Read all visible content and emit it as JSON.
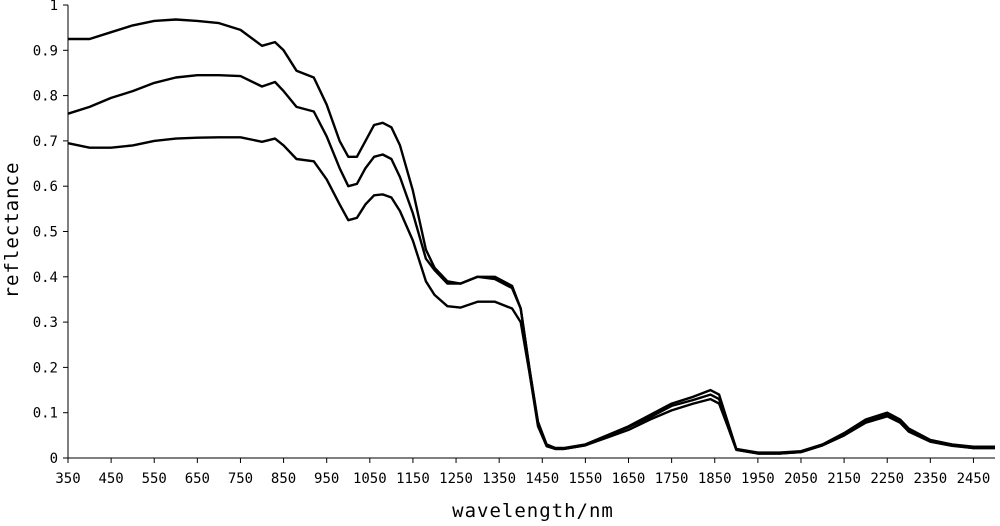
{
  "chart_data": {
    "type": "line",
    "xlabel": "wavelength/nm",
    "ylabel": "reflectance",
    "xlim": [
      350,
      2500
    ],
    "ylim": [
      0,
      1
    ],
    "x_ticks": [
      350,
      450,
      550,
      650,
      750,
      850,
      950,
      1050,
      1150,
      1250,
      1350,
      1450,
      1550,
      1650,
      1750,
      1850,
      1950,
      2050,
      2150,
      2250,
      2350,
      2450
    ],
    "y_ticks": [
      "0",
      "0.1",
      "0.2",
      "0.3",
      "0.4",
      "0.5",
      "0.6",
      "0.7",
      "0.8",
      "0.9",
      "1"
    ],
    "grid": false,
    "legend": "none",
    "line_color": "#000000",
    "series": [
      {
        "x": [
          350,
          400,
          450,
          500,
          550,
          600,
          650,
          700,
          750,
          800,
          830,
          850,
          880,
          920,
          950,
          980,
          1000,
          1020,
          1040,
          1060,
          1080,
          1100,
          1120,
          1150,
          1180,
          1200,
          1230,
          1260,
          1300,
          1340,
          1380,
          1400,
          1420,
          1440,
          1460,
          1480,
          1500,
          1550,
          1600,
          1650,
          1700,
          1750,
          1800,
          1840,
          1860,
          1880,
          1900,
          1950,
          2000,
          2050,
          2100,
          2150,
          2200,
          2250,
          2280,
          2300,
          2350,
          2400,
          2450,
          2500
        ],
        "y": [
          0.925,
          0.925,
          0.94,
          0.955,
          0.965,
          0.968,
          0.965,
          0.96,
          0.945,
          0.91,
          0.918,
          0.9,
          0.855,
          0.84,
          0.78,
          0.7,
          0.665,
          0.665,
          0.7,
          0.735,
          0.74,
          0.73,
          0.69,
          0.59,
          0.46,
          0.42,
          0.39,
          0.385,
          0.4,
          0.4,
          0.38,
          0.33,
          0.2,
          0.08,
          0.03,
          0.022,
          0.022,
          0.03,
          0.05,
          0.07,
          0.095,
          0.12,
          0.135,
          0.15,
          0.14,
          0.08,
          0.02,
          0.012,
          0.012,
          0.015,
          0.03,
          0.055,
          0.085,
          0.1,
          0.085,
          0.065,
          0.04,
          0.03,
          0.025,
          0.025
        ]
      },
      {
        "x": [
          350,
          400,
          450,
          500,
          550,
          600,
          650,
          700,
          750,
          800,
          830,
          850,
          880,
          920,
          950,
          980,
          1000,
          1020,
          1040,
          1060,
          1080,
          1100,
          1120,
          1150,
          1180,
          1200,
          1230,
          1260,
          1300,
          1340,
          1380,
          1400,
          1420,
          1440,
          1460,
          1480,
          1500,
          1550,
          1600,
          1650,
          1700,
          1750,
          1800,
          1840,
          1860,
          1880,
          1900,
          1950,
          2000,
          2050,
          2100,
          2150,
          2200,
          2250,
          2280,
          2300,
          2350,
          2400,
          2450,
          2500
        ],
        "y": [
          0.76,
          0.775,
          0.795,
          0.81,
          0.828,
          0.84,
          0.845,
          0.845,
          0.843,
          0.82,
          0.83,
          0.81,
          0.775,
          0.765,
          0.71,
          0.64,
          0.6,
          0.605,
          0.64,
          0.665,
          0.67,
          0.66,
          0.62,
          0.54,
          0.44,
          0.415,
          0.385,
          0.385,
          0.4,
          0.395,
          0.375,
          0.33,
          0.2,
          0.075,
          0.028,
          0.02,
          0.02,
          0.028,
          0.048,
          0.068,
          0.09,
          0.115,
          0.128,
          0.14,
          0.13,
          0.075,
          0.018,
          0.01,
          0.01,
          0.013,
          0.028,
          0.05,
          0.08,
          0.095,
          0.08,
          0.06,
          0.038,
          0.028,
          0.022,
          0.022
        ]
      },
      {
        "x": [
          350,
          400,
          450,
          500,
          550,
          600,
          650,
          700,
          750,
          800,
          830,
          850,
          880,
          920,
          950,
          980,
          1000,
          1020,
          1040,
          1060,
          1080,
          1100,
          1120,
          1150,
          1180,
          1200,
          1230,
          1260,
          1300,
          1340,
          1380,
          1400,
          1420,
          1440,
          1460,
          1480,
          1500,
          1550,
          1600,
          1650,
          1700,
          1750,
          1800,
          1840,
          1860,
          1880,
          1900,
          1950,
          2000,
          2050,
          2100,
          2150,
          2200,
          2250,
          2280,
          2300,
          2350,
          2400,
          2450,
          2500
        ],
        "y": [
          0.695,
          0.685,
          0.685,
          0.69,
          0.7,
          0.705,
          0.707,
          0.708,
          0.708,
          0.698,
          0.705,
          0.69,
          0.66,
          0.655,
          0.615,
          0.56,
          0.525,
          0.53,
          0.56,
          0.58,
          0.582,
          0.575,
          0.545,
          0.48,
          0.39,
          0.36,
          0.335,
          0.332,
          0.345,
          0.345,
          0.33,
          0.3,
          0.19,
          0.07,
          0.026,
          0.02,
          0.02,
          0.028,
          0.045,
          0.062,
          0.085,
          0.105,
          0.12,
          0.13,
          0.12,
          0.07,
          0.018,
          0.01,
          0.01,
          0.013,
          0.028,
          0.05,
          0.078,
          0.092,
          0.078,
          0.058,
          0.036,
          0.027,
          0.022,
          0.022
        ]
      }
    ]
  }
}
